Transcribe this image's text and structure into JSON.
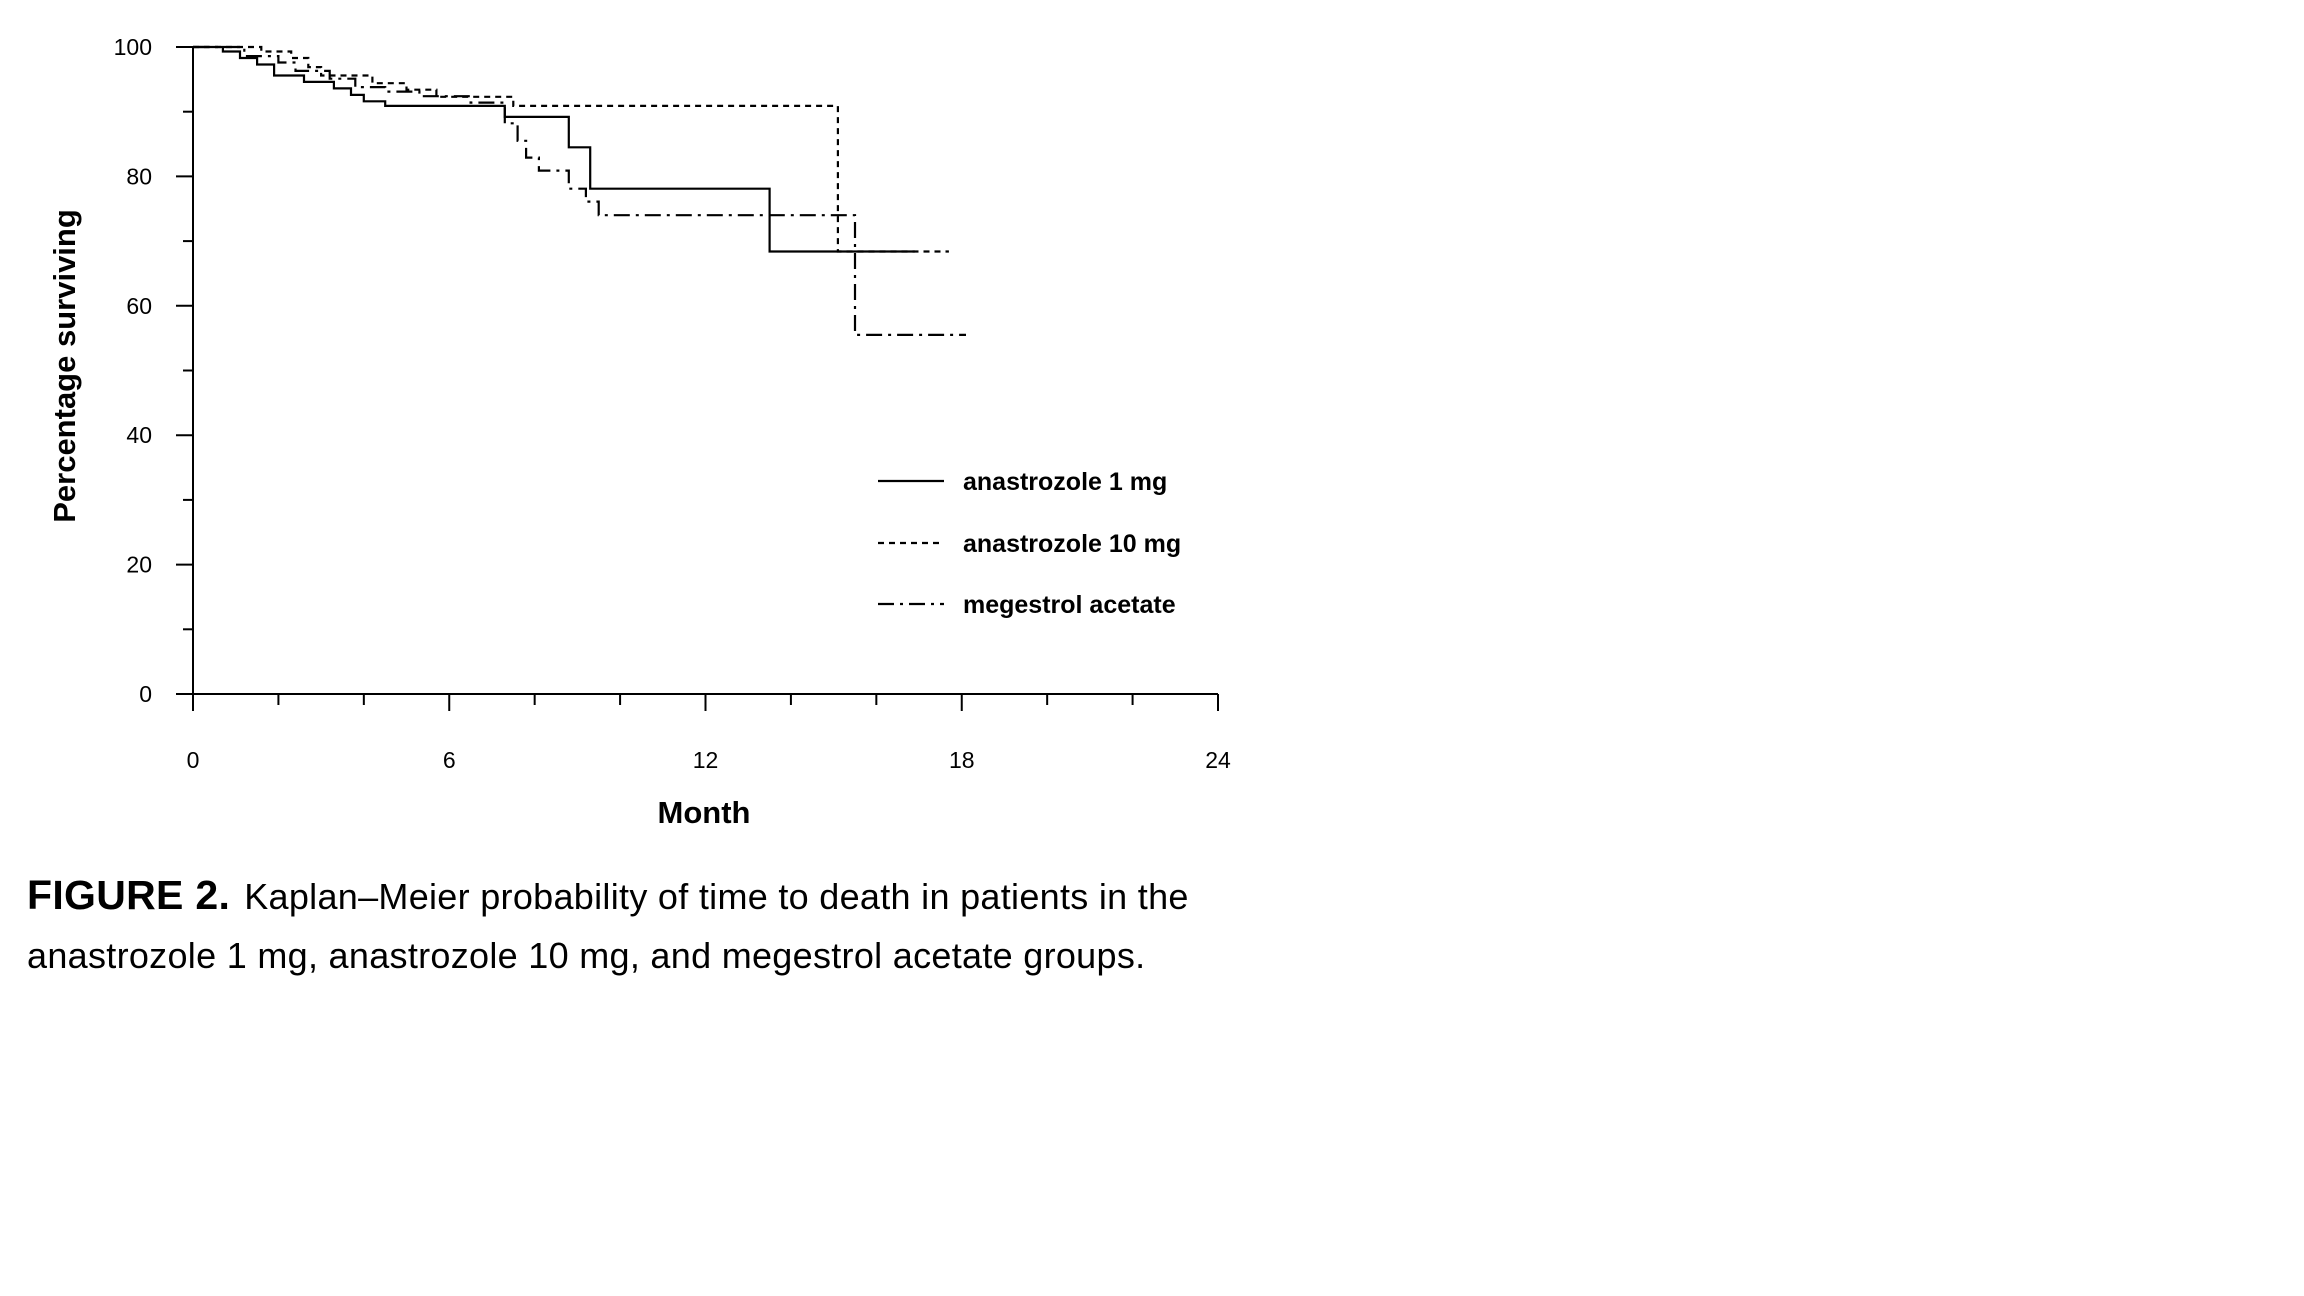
{
  "chart_data": {
    "type": "line",
    "subtype": "kaplan-meier step",
    "xlabel": "Month",
    "ylabel": "Percentage surviving",
    "xlim": [
      0,
      24
    ],
    "ylim": [
      0,
      100
    ],
    "x_ticks": [
      "0",
      "6",
      "12",
      "18",
      "24"
    ],
    "y_ticks": [
      "0",
      "20",
      "40",
      "60",
      "80",
      "100"
    ],
    "legend_position": "right-center",
    "grid": false,
    "series": [
      {
        "name": "anastrozole 1 mg",
        "style": "solid",
        "color": "#000000",
        "points": [
          [
            0,
            100
          ],
          [
            0.7,
            99.3
          ],
          [
            1.1,
            98.3
          ],
          [
            1.5,
            97.3
          ],
          [
            1.9,
            95.6
          ],
          [
            2.6,
            94.6
          ],
          [
            3.3,
            93.6
          ],
          [
            3.7,
            92.6
          ],
          [
            4,
            91.6
          ],
          [
            4.5,
            90.9
          ],
          [
            7.2,
            90.9
          ],
          [
            7.3,
            89.2
          ],
          [
            8.7,
            89.2
          ],
          [
            8.8,
            84.5
          ],
          [
            9.2,
            84.5
          ],
          [
            9.3,
            78.1
          ],
          [
            13.5,
            78.1
          ],
          [
            13.5,
            68.4
          ],
          [
            16.9,
            68.4
          ]
        ]
      },
      {
        "name": "anastrozole 10 mg",
        "style": "dashed",
        "color": "#000000",
        "points": [
          [
            0,
            100
          ],
          [
            1.6,
            99.3
          ],
          [
            2.3,
            98.3
          ],
          [
            2.7,
            96.9
          ],
          [
            3,
            95.6
          ],
          [
            4.2,
            94.4
          ],
          [
            5,
            93.4
          ],
          [
            5.7,
            92.3
          ],
          [
            7.2,
            92.3
          ],
          [
            7.5,
            90.9
          ],
          [
            15.1,
            90.9
          ],
          [
            15.1,
            68.4
          ],
          [
            17.7,
            68.4
          ]
        ]
      },
      {
        "name": "megestrol acetate",
        "style": "dash-dot",
        "color": "#000000",
        "points": [
          [
            0,
            100
          ],
          [
            1.2,
            98.6
          ],
          [
            2,
            97.6
          ],
          [
            2.4,
            96.3
          ],
          [
            3.2,
            95.1
          ],
          [
            3.8,
            93.8
          ],
          [
            4.5,
            93.1
          ],
          [
            5.3,
            92.4
          ],
          [
            6.5,
            91.4
          ],
          [
            7.1,
            91.4
          ],
          [
            7.3,
            88.2
          ],
          [
            7.6,
            85.5
          ],
          [
            7.8,
            82.9
          ],
          [
            8.1,
            80.9
          ],
          [
            8.6,
            80.9
          ],
          [
            8.8,
            78.1
          ],
          [
            9.2,
            76.1
          ],
          [
            9.5,
            74
          ],
          [
            15.3,
            74
          ],
          [
            15.5,
            55.5
          ],
          [
            18.1,
            55.5
          ]
        ]
      }
    ]
  },
  "caption": {
    "label": "FIGURE 2.",
    "text": "Kaplan–Meier probability of time to death in patients in the anastrozole 1 mg, anastrozole 10 mg, and megestrol acetate groups."
  }
}
